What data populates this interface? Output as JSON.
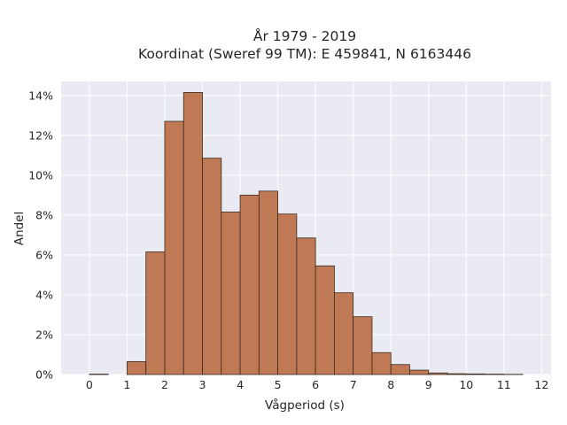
{
  "chart_data": {
    "type": "bar",
    "title": "År 1979 - 2019",
    "subtitle": "Koordinat (Sweref 99 TM): E 459841, N 6163446",
    "xlabel": "Vågperiod (s)",
    "ylabel": "Andel",
    "xlim": [
      -0.75,
      12.25
    ],
    "ylim": [
      0,
      14.7
    ],
    "xticks": [
      0,
      1,
      2,
      3,
      4,
      5,
      6,
      7,
      8,
      9,
      10,
      11,
      12
    ],
    "yticks": [
      0,
      2,
      4,
      6,
      8,
      10,
      12,
      14
    ],
    "ytick_suffix": "%",
    "bin_width": 0.5,
    "bins": [
      {
        "x": 0.0,
        "value": 0.02
      },
      {
        "x": 1.0,
        "value": 0.65
      },
      {
        "x": 1.5,
        "value": 6.15
      },
      {
        "x": 2.0,
        "value": 12.7
      },
      {
        "x": 2.5,
        "value": 14.15
      },
      {
        "x": 3.0,
        "value": 10.85
      },
      {
        "x": 3.5,
        "value": 8.15
      },
      {
        "x": 4.0,
        "value": 9.0
      },
      {
        "x": 4.5,
        "value": 9.2
      },
      {
        "x": 5.0,
        "value": 8.05
      },
      {
        "x": 5.5,
        "value": 6.85
      },
      {
        "x": 6.0,
        "value": 5.45
      },
      {
        "x": 6.5,
        "value": 4.1
      },
      {
        "x": 7.0,
        "value": 2.9
      },
      {
        "x": 7.5,
        "value": 1.1
      },
      {
        "x": 8.0,
        "value": 0.5
      },
      {
        "x": 8.5,
        "value": 0.22
      },
      {
        "x": 9.0,
        "value": 0.08
      },
      {
        "x": 9.5,
        "value": 0.04
      },
      {
        "x": 10.0,
        "value": 0.03
      },
      {
        "x": 10.5,
        "value": 0.02
      },
      {
        "x": 11.0,
        "value": 0.01
      }
    ],
    "colors": {
      "bar_fill": "#bf7a55",
      "bar_edge": "#3a2a20",
      "plot_background": "#eaeaf2",
      "grid": "#ffffff"
    },
    "grid": true
  }
}
